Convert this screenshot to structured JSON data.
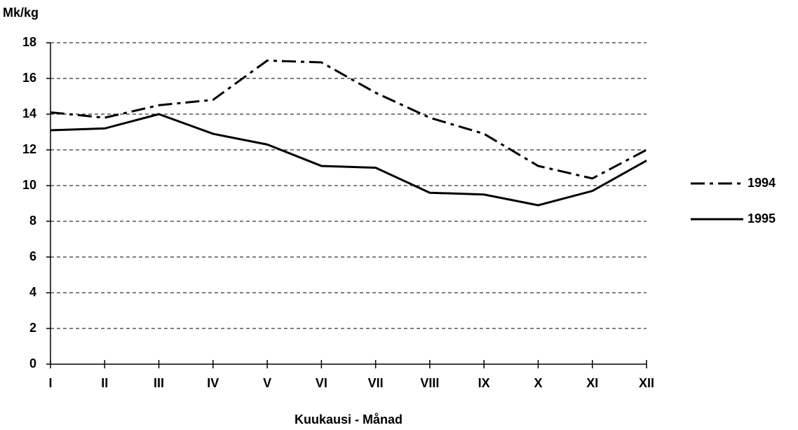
{
  "chart_data": {
    "type": "line",
    "y_label": "Mk/kg",
    "x_label": "Kuukausi - Månad",
    "categories": [
      "I",
      "II",
      "III",
      "IV",
      "V",
      "VI",
      "VII",
      "VIII",
      "IX",
      "X",
      "XI",
      "XII"
    ],
    "series": [
      {
        "name": "1994",
        "color": "#000000",
        "linestyle": "dashdot",
        "values": [
          14.1,
          13.8,
          14.5,
          14.8,
          17.0,
          16.9,
          15.2,
          13.8,
          12.9,
          11.1,
          10.4,
          12.0
        ]
      },
      {
        "name": "1995",
        "color": "#000000",
        "linestyle": "solid",
        "values": [
          13.1,
          13.2,
          14.0,
          12.9,
          12.3,
          11.1,
          11.0,
          9.6,
          9.5,
          8.9,
          9.7,
          11.4
        ]
      }
    ],
    "ylim": [
      0,
      18
    ],
    "yticks": [
      0,
      2,
      4,
      6,
      8,
      10,
      12,
      14,
      16,
      18
    ],
    "grid": true,
    "legend": "right"
  }
}
